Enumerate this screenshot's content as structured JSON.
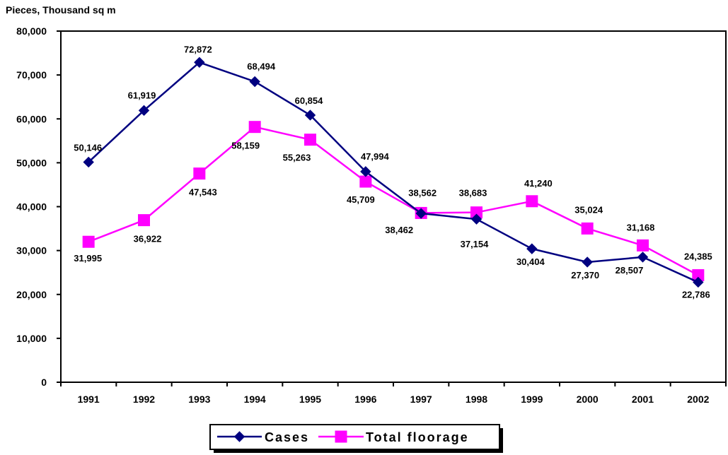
{
  "chart_data": {
    "type": "line",
    "ylabel": "Pieces, Thousand sq m",
    "xlabel": "",
    "ylim": [
      0,
      80000
    ],
    "yticks": [
      "0",
      "10,000",
      "20,000",
      "30,000",
      "40,000",
      "50,000",
      "60,000",
      "70,000",
      "80,000"
    ],
    "ytick_values": [
      0,
      10000,
      20000,
      30000,
      40000,
      50000,
      60000,
      70000,
      80000
    ],
    "categories": [
      "1991",
      "1992",
      "1993",
      "1994",
      "1995",
      "1996",
      "1997",
      "1998",
      "1999",
      "2000",
      "2001",
      "2002"
    ],
    "grid": false,
    "legend": "bottom-center",
    "series": [
      {
        "name": "Cases",
        "color": "#000080",
        "marker": "diamond",
        "values": [
          50146,
          61919,
          72872,
          68494,
          60854,
          47994,
          38462,
          37154,
          30404,
          27370,
          28507,
          22786
        ],
        "labels": [
          "50,146",
          "61,919",
          "72,872",
          "68,494",
          "60,854",
          "47,994",
          "38,462",
          "37,154",
          "30,404",
          "27,370",
          "28,507",
          "22,786"
        ]
      },
      {
        "name": "Total floorage",
        "color": "#FF00FF",
        "marker": "square",
        "values": [
          31995,
          36922,
          47543,
          58159,
          55263,
          45709,
          38562,
          38683,
          41240,
          35024,
          31168,
          24385
        ],
        "labels": [
          "31,995",
          "36,922",
          "47,543",
          "58,159",
          "55,263",
          "45,709",
          "38,562",
          "38,683",
          "41,240",
          "35,024",
          "31,168",
          "24,385"
        ]
      }
    ]
  }
}
